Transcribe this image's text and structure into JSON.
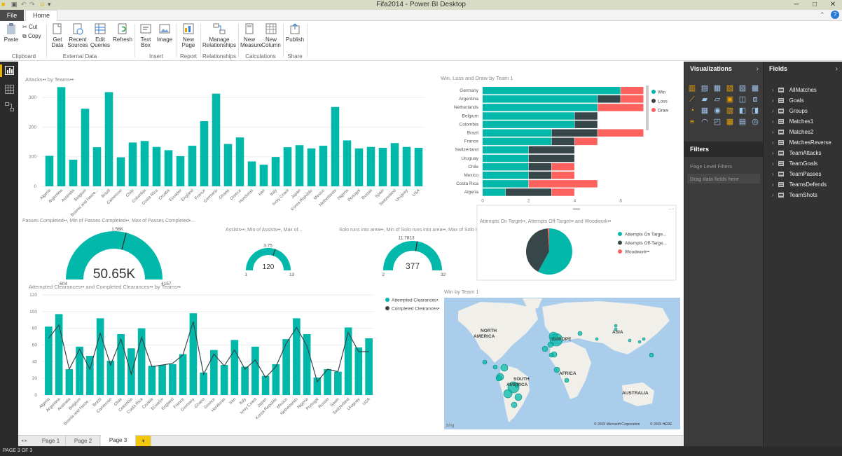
{
  "window": {
    "title": "Fifa2014 - Power BI Desktop"
  },
  "tabs": {
    "file": "File",
    "home": "Home"
  },
  "ribbon": {
    "paste": "Paste",
    "cut": "Cut",
    "copy": "Copy",
    "get_data": "Get Data",
    "recent_sources": "Recent Sources",
    "edit_queries": "Edit Queries",
    "refresh": "Refresh",
    "text_box": "Text Box",
    "image": "Image",
    "new_page": "New Page",
    "manage_relationships": "Manage Relationships",
    "new_measure": "New Measure",
    "new_column": "New Column",
    "publish": "Publish",
    "groups": {
      "clipboard": "Clipboard",
      "external_data": "External Data",
      "insert": "Insert",
      "report": "Report",
      "relationships": "Relationships",
      "calculations": "Calculations",
      "share": "Share"
    }
  },
  "visuals": {
    "attacks_title": "Attacks•• by Teams••",
    "wld_title": "Win, Loss and Draw by Team 1",
    "passes_title": "Passes Completed••, Min of Passes Completed••, Max of Passes Completed•...",
    "assists_title": "Assists••, Min of Assists••, Max of...",
    "solo_title": "Solo runs into area••, Min of Solo runs into area••, Max of Solo runs int...",
    "attempts_title": "Attempts On Target••, Attempts Off-Target•• and Woodwork••",
    "clearances_title": "Attempted Clearances•• and Completed Clearances•• by Teams••",
    "map_title": "Win by Team 1"
  },
  "gauges": {
    "passes": {
      "value": "50.65K",
      "min": "604",
      "max": "4157",
      "target": "1.56K",
      "fraction": 0.58
    },
    "assists": {
      "value": "120",
      "min": "1",
      "max": "13",
      "target": "3.75",
      "fraction": 0.6
    },
    "solo": {
      "value": "377",
      "min": "2",
      "max": "32",
      "target": "11.7813",
      "fraction": 0.55
    }
  },
  "map": {
    "labels": [
      "NORTH AMERICA",
      "EUROPE",
      "ASIA",
      "AFRICA",
      "SOUTH AMERICA",
      "AUSTRALIA"
    ],
    "copyright1": "© 2015 Microsoft Corporation",
    "copyright2": "© 2015 HERE",
    "bing": "bing"
  },
  "colors": {
    "teal": "#01b8aa",
    "dark": "#374649",
    "red": "#fd625e",
    "gray": "#a0a0a0"
  },
  "viz_pane": {
    "title": "Visualizations",
    "filters": "Filters",
    "page_level_filters": "Page Level Filters",
    "drag_here": "Drag data fields here"
  },
  "fields_pane": {
    "title": "Fields",
    "tables": [
      "AllMatches",
      "Goals",
      "Groups",
      "Matches1",
      "Matches2",
      "MatchesReverse",
      "TeamAttacks",
      "TeamGoals",
      "TeamPasses",
      "TeamsDefends",
      "TeamShots"
    ]
  },
  "pages": [
    "Page 1",
    "Page 2",
    "Page 3"
  ],
  "add_page": "+",
  "status": "PAGE 3 OF 3",
  "chart_data": [
    {
      "type": "bar",
      "title": "Attacks•• by Teams••",
      "categories": [
        "Algeria",
        "Argentina",
        "Australia",
        "Belgium",
        "Bosnia and Herze...",
        "Brazil",
        "Cameroon",
        "Chile",
        "Colombia",
        "Costa Rica",
        "Croatia",
        "Ecuador",
        "England",
        "France",
        "Germany",
        "Ghana",
        "Greece",
        "Honduras",
        "Iran",
        "Italy",
        "Ivory Coast",
        "Japan",
        "Korea Republic",
        "Mexico",
        "Netherlands",
        "Nigeria",
        "Portugal",
        "Russia",
        "Spain",
        "Switzerland",
        "Uruguay",
        "USA"
      ],
      "values": [
        103,
        335,
        90,
        262,
        132,
        318,
        98,
        148,
        153,
        133,
        122,
        102,
        137,
        220,
        313,
        143,
        165,
        84,
        73,
        99,
        132,
        139,
        128,
        137,
        268,
        155,
        128,
        133,
        130,
        146,
        133,
        130
      ],
      "yticks": [
        "0",
        "100",
        "200",
        "300"
      ],
      "ylim": [
        0,
        350
      ]
    },
    {
      "type": "bar",
      "orientation": "horizontal-stacked",
      "title": "Win, Loss and Draw by Team 1",
      "categories": [
        "Germany",
        "Argentina",
        "Netherlands",
        "Belgium",
        "Colombia",
        "Brazil",
        "France",
        "Switzerland",
        "Uruguay",
        "Chile",
        "Mexico",
        "Costa Rica",
        "Algeria"
      ],
      "series": [
        {
          "name": "Win",
          "values": [
            6,
            5,
            5,
            4,
            4,
            3,
            3,
            2,
            2,
            2,
            2,
            2,
            1
          ]
        },
        {
          "name": "Loss",
          "values": [
            0,
            1,
            0,
            1,
            1,
            2,
            1,
            2,
            2,
            1,
            1,
            0,
            2
          ]
        },
        {
          "name": "Draw",
          "values": [
            1,
            1,
            2,
            0,
            0,
            2,
            1,
            0,
            0,
            1,
            1,
            3,
            1
          ]
        }
      ],
      "xticks": [
        "0",
        "2",
        "4",
        "6"
      ],
      "xlim": [
        0,
        7
      ]
    },
    {
      "type": "pie",
      "title": "Attempts On Target••, Attempts Off-Target•• and Woodwork••",
      "series": [
        {
          "name": "Attempts On Targe...",
          "value": 58
        },
        {
          "name": "Attempts Off-Targe...",
          "value": 41
        },
        {
          "name": "Woodwork••",
          "value": 1
        }
      ]
    },
    {
      "type": "bar",
      "title": "Attempted Clearances•• and Completed Clearances•• by Teams••",
      "categories": [
        "Algeria",
        "Argentina",
        "Australia",
        "Belgium",
        "Bosnia and Herze...",
        "Brazil",
        "Cameroon",
        "Chile",
        "Colombia",
        "Costa Rica",
        "Croatia",
        "Ecuador",
        "England",
        "France",
        "Germany",
        "Ghana",
        "Greece",
        "Honduras",
        "Iran",
        "Italy",
        "Ivory Coast",
        "Japan",
        "Korea Republic",
        "Mexico",
        "Netherlands",
        "Nigeria",
        "Portugal",
        "Russia",
        "Spain",
        "Switzerland",
        "Uruguay",
        "USA"
      ],
      "series": [
        {
          "name": "Attempted Clearances•",
          "values": [
            82,
            97,
            31,
            58,
            47,
            92,
            41,
            73,
            56,
            80,
            35,
            36,
            37,
            49,
            98,
            27,
            54,
            36,
            66,
            34,
            58,
            23,
            37,
            67,
            92,
            73,
            21,
            31,
            28,
            81,
            57,
            68
          ]
        },
        {
          "name": "Completed Clearances•",
          "values": [
            68,
            84,
            31,
            55,
            31,
            74,
            36,
            67,
            25,
            69,
            34,
            36,
            38,
            48,
            88,
            25,
            49,
            35,
            54,
            31,
            42,
            21,
            34,
            62,
            81,
            59,
            16,
            31,
            28,
            75,
            52,
            52
          ]
        }
      ],
      "yticks": [
        "0",
        "20",
        "40",
        "60",
        "80",
        "100",
        "120"
      ],
      "ylim": [
        0,
        120
      ]
    }
  ]
}
